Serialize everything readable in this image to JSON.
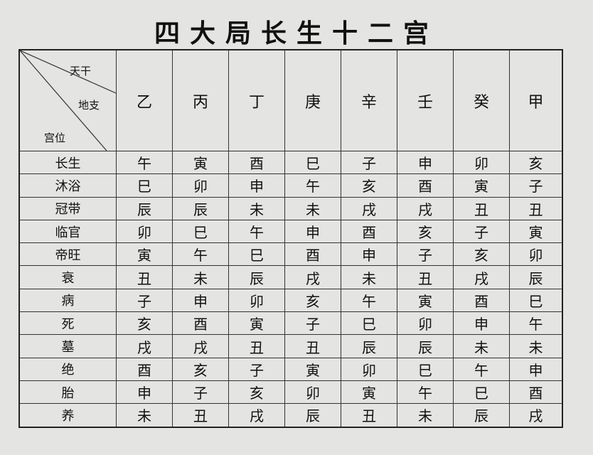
{
  "title": "四大局长生十二宫",
  "corner": {
    "top": "天干",
    "middle": "地支",
    "bottom": "宫位"
  },
  "columns": [
    "乙",
    "丙",
    "丁",
    "庚",
    "辛",
    "壬",
    "癸",
    "甲"
  ],
  "rows": [
    {
      "label": "长生",
      "cells": [
        "午",
        "寅",
        "酉",
        "巳",
        "子",
        "申",
        "卯",
        "亥"
      ]
    },
    {
      "label": "沐浴",
      "cells": [
        "巳",
        "卯",
        "申",
        "午",
        "亥",
        "酉",
        "寅",
        "子"
      ]
    },
    {
      "label": "冠带",
      "cells": [
        "辰",
        "辰",
        "未",
        "未",
        "戌",
        "戌",
        "丑",
        "丑"
      ]
    },
    {
      "label": "临官",
      "cells": [
        "卯",
        "巳",
        "午",
        "申",
        "酉",
        "亥",
        "子",
        "寅"
      ]
    },
    {
      "label": "帝旺",
      "cells": [
        "寅",
        "午",
        "巳",
        "酉",
        "申",
        "子",
        "亥",
        "卯"
      ]
    },
    {
      "label": "衰",
      "cells": [
        "丑",
        "未",
        "辰",
        "戌",
        "未",
        "丑",
        "戌",
        "辰"
      ]
    },
    {
      "label": "病",
      "cells": [
        "子",
        "申",
        "卯",
        "亥",
        "午",
        "寅",
        "酉",
        "巳"
      ]
    },
    {
      "label": "死",
      "cells": [
        "亥",
        "酉",
        "寅",
        "子",
        "巳",
        "卯",
        "申",
        "午"
      ]
    },
    {
      "label": "墓",
      "cells": [
        "戌",
        "戌",
        "丑",
        "丑",
        "辰",
        "辰",
        "未",
        "未"
      ]
    },
    {
      "label": "绝",
      "cells": [
        "酉",
        "亥",
        "子",
        "寅",
        "卯",
        "巳",
        "午",
        "申"
      ]
    },
    {
      "label": "胎",
      "cells": [
        "申",
        "子",
        "亥",
        "卯",
        "寅",
        "午",
        "巳",
        "酉"
      ]
    },
    {
      "label": "养",
      "cells": [
        "未",
        "丑",
        "戌",
        "辰",
        "丑",
        "未",
        "辰",
        "戌"
      ]
    }
  ]
}
